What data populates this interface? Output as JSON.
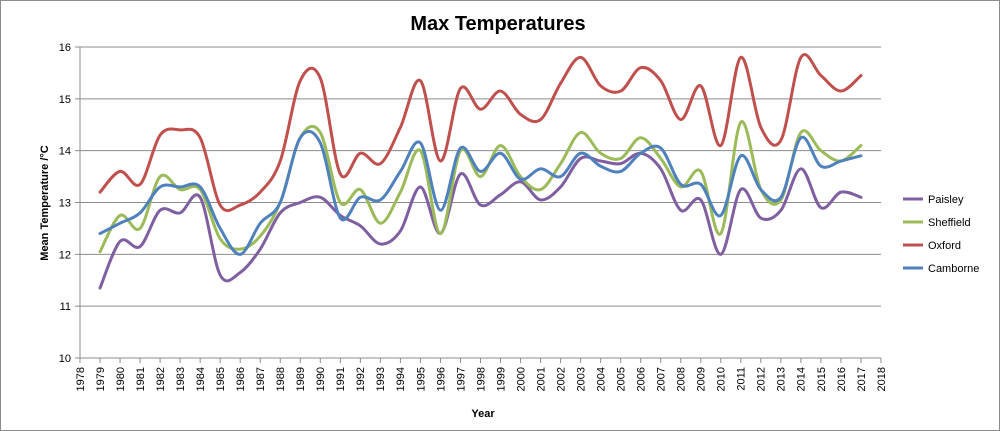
{
  "chart_data": {
    "type": "line",
    "title": "Max Temperatures",
    "xlabel": "Year",
    "ylabel": "Mean Temperature /°C",
    "xlim": [
      1978,
      2018
    ],
    "ylim": [
      10,
      16
    ],
    "x_ticks": [
      1978,
      1979,
      1980,
      1981,
      1982,
      1983,
      1984,
      1985,
      1986,
      1987,
      1988,
      1989,
      1990,
      1991,
      1992,
      1993,
      1994,
      1995,
      1996,
      1997,
      1998,
      1999,
      2000,
      2001,
      2002,
      2003,
      2004,
      2005,
      2006,
      2007,
      2008,
      2009,
      2010,
      2011,
      2012,
      2013,
      2014,
      2015,
      2016,
      2017,
      2018
    ],
    "y_ticks": [
      10,
      11,
      12,
      13,
      14,
      15,
      16
    ],
    "grid": "horizontal",
    "legend_position": "right",
    "x": [
      1979,
      1980,
      1981,
      1982,
      1983,
      1984,
      1985,
      1986,
      1987,
      1988,
      1989,
      1990,
      1991,
      1992,
      1993,
      1994,
      1995,
      1996,
      1997,
      1998,
      1999,
      2000,
      2001,
      2002,
      2003,
      2004,
      2005,
      2006,
      2007,
      2008,
      2009,
      2010,
      2011,
      2012,
      2013,
      2014,
      2015,
      2016,
      2017
    ],
    "series": [
      {
        "name": "Paisley",
        "color": "#7f5fa0",
        "values": [
          11.35,
          12.25,
          12.15,
          12.85,
          12.8,
          13.1,
          11.6,
          11.65,
          12.1,
          12.8,
          13.0,
          13.1,
          12.75,
          12.55,
          12.2,
          12.45,
          13.3,
          12.4,
          13.55,
          12.95,
          13.15,
          13.4,
          13.05,
          13.3,
          13.85,
          13.8,
          13.75,
          13.95,
          13.65,
          12.85,
          13.05,
          12.0,
          13.25,
          12.7,
          12.85,
          13.65,
          12.9,
          13.2,
          13.1
        ]
      },
      {
        "name": "Sheffield",
        "color": "#9bbb59",
        "values": [
          12.05,
          12.75,
          12.5,
          13.5,
          13.25,
          13.25,
          12.3,
          12.1,
          12.35,
          13.0,
          14.25,
          14.35,
          13.0,
          13.25,
          12.6,
          13.2,
          14.0,
          12.4,
          14.0,
          13.5,
          14.1,
          13.5,
          13.25,
          13.75,
          14.35,
          13.95,
          13.85,
          14.25,
          13.85,
          13.3,
          13.6,
          12.4,
          14.55,
          13.25,
          13.05,
          14.35,
          14.0,
          13.8,
          14.1
        ]
      },
      {
        "name": "Oxford",
        "color": "#c0504d",
        "values": [
          13.2,
          13.6,
          13.35,
          14.3,
          14.4,
          14.25,
          12.95,
          12.95,
          13.2,
          13.8,
          15.35,
          15.4,
          13.55,
          13.95,
          13.75,
          14.45,
          15.35,
          13.8,
          15.2,
          14.8,
          15.15,
          14.7,
          14.6,
          15.3,
          15.8,
          15.25,
          15.15,
          15.6,
          15.35,
          14.6,
          15.25,
          14.1,
          15.8,
          14.45,
          14.2,
          15.8,
          15.45,
          15.15,
          15.45
        ]
      },
      {
        "name": "Camborne",
        "color": "#4f81bd",
        "values": [
          12.4,
          12.6,
          12.8,
          13.3,
          13.3,
          13.3,
          12.5,
          12.0,
          12.6,
          13.0,
          14.25,
          14.15,
          12.7,
          13.1,
          13.05,
          13.6,
          14.15,
          12.85,
          14.05,
          13.6,
          13.95,
          13.45,
          13.65,
          13.5,
          13.95,
          13.7,
          13.6,
          13.95,
          14.05,
          13.35,
          13.35,
          12.75,
          13.9,
          13.25,
          13.1,
          14.25,
          13.7,
          13.8,
          13.9
        ]
      }
    ]
  }
}
